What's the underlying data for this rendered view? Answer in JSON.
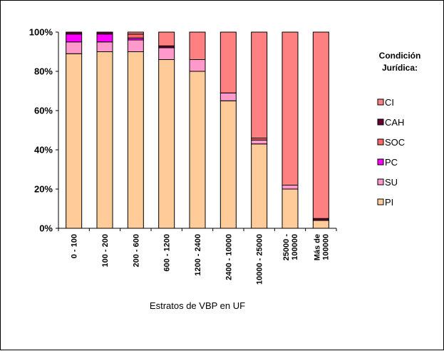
{
  "chart_data": {
    "type": "bar",
    "stacked": "percent",
    "categories": [
      "0 - 100",
      "100 - 200",
      "200 - 600",
      "600 - 1200",
      "1200 - 2400",
      "2400 - 10000",
      "10000 - 25000",
      "25000 - 100000",
      "Más de 100000"
    ],
    "category_lines": [
      [
        "0 - 100"
      ],
      [
        "100 - 200"
      ],
      [
        "200 - 600"
      ],
      [
        "600 - 1200"
      ],
      [
        "1200 - 2400"
      ],
      [
        "2400 - 10000"
      ],
      [
        "10000 - 25000"
      ],
      [
        "25000 -",
        "100000"
      ],
      [
        "Más de",
        "100000"
      ]
    ],
    "series": [
      {
        "name": "PI",
        "color": "#FFCC99",
        "values": [
          89,
          90,
          90,
          86,
          80,
          65,
          43,
          20,
          4
        ]
      },
      {
        "name": "SU",
        "color": "#FF99CC",
        "values": [
          6,
          5,
          6,
          6,
          6,
          4,
          2,
          2,
          0
        ]
      },
      {
        "name": "PC",
        "color": "#FF00FF",
        "values": [
          4,
          4,
          1,
          0,
          0,
          0,
          0,
          0,
          0
        ]
      },
      {
        "name": "SOC",
        "color": "#FF6666",
        "values": [
          0,
          0,
          2,
          0,
          0,
          0,
          1,
          0,
          0
        ]
      },
      {
        "name": "CAH",
        "color": "#660033",
        "values": [
          1,
          1,
          0,
          1,
          0,
          0,
          0,
          0,
          1
        ]
      },
      {
        "name": "CI",
        "color": "#FF8080",
        "values": [
          0,
          0,
          1,
          7,
          14,
          31,
          54,
          78,
          95
        ]
      }
    ],
    "ylim": [
      0,
      100
    ],
    "yticks": [
      "0%",
      "20%",
      "40%",
      "60%",
      "80%",
      "100%"
    ],
    "xlabel": "Estratos de VBP en UF",
    "ylabel": "",
    "legend": {
      "title_lines": [
        "Condición",
        "Jurídica:"
      ],
      "order": [
        "CI",
        "CAH",
        "SOC",
        "PC",
        "SU",
        "PI"
      ],
      "position": "right"
    },
    "grid": false
  }
}
